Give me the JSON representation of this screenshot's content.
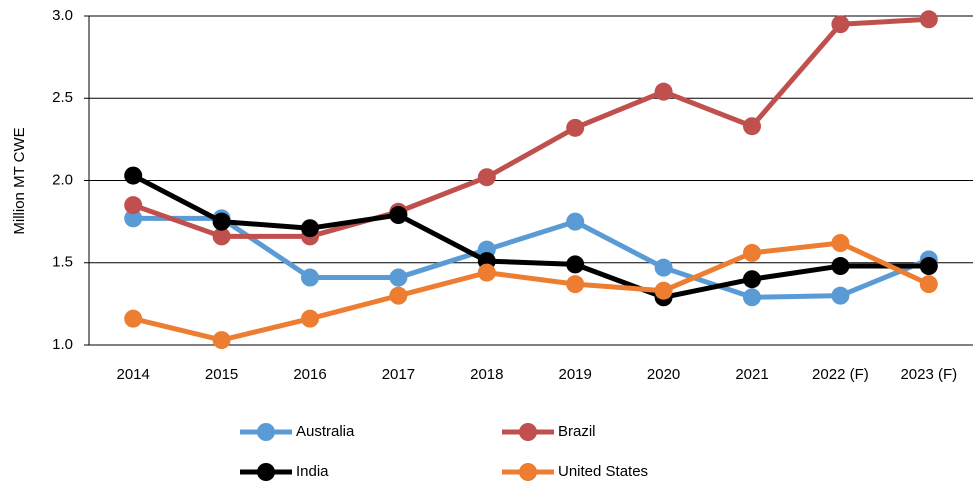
{
  "chart_data": {
    "type": "line",
    "y_label": "Million MT CWE",
    "categories": [
      "2014",
      "2015",
      "2016",
      "2017",
      "2018",
      "2019",
      "2020",
      "2021",
      "2022 (F)",
      "2023 (F)"
    ],
    "series": [
      {
        "name": "Australia",
        "color": "#5b9bd5",
        "values": [
          1.77,
          1.77,
          1.41,
          1.41,
          1.58,
          1.75,
          1.47,
          1.29,
          1.3,
          1.52
        ]
      },
      {
        "name": "Brazil",
        "color": "#c0504d",
        "values": [
          1.85,
          1.66,
          1.66,
          1.81,
          2.02,
          2.32,
          2.54,
          2.33,
          2.95,
          2.98
        ]
      },
      {
        "name": "India",
        "color": "#000000",
        "values": [
          2.03,
          1.75,
          1.71,
          1.79,
          1.51,
          1.49,
          1.29,
          1.4,
          1.48,
          1.48
        ]
      },
      {
        "name": "United States",
        "color": "#ed7d31",
        "values": [
          1.16,
          1.03,
          1.16,
          1.3,
          1.44,
          1.37,
          1.33,
          1.56,
          1.62,
          1.37
        ]
      }
    ],
    "ylim": [
      1,
      3
    ],
    "yticks": [
      {
        "value": 1,
        "label": "1.0"
      },
      {
        "value": 1.5,
        "label": "1.5"
      },
      {
        "value": 2,
        "label": "2.0"
      },
      {
        "value": 2.5,
        "label": "2.5"
      },
      {
        "value": 3,
        "label": "3.0"
      }
    ],
    "grid": true,
    "legend": "bottom"
  }
}
